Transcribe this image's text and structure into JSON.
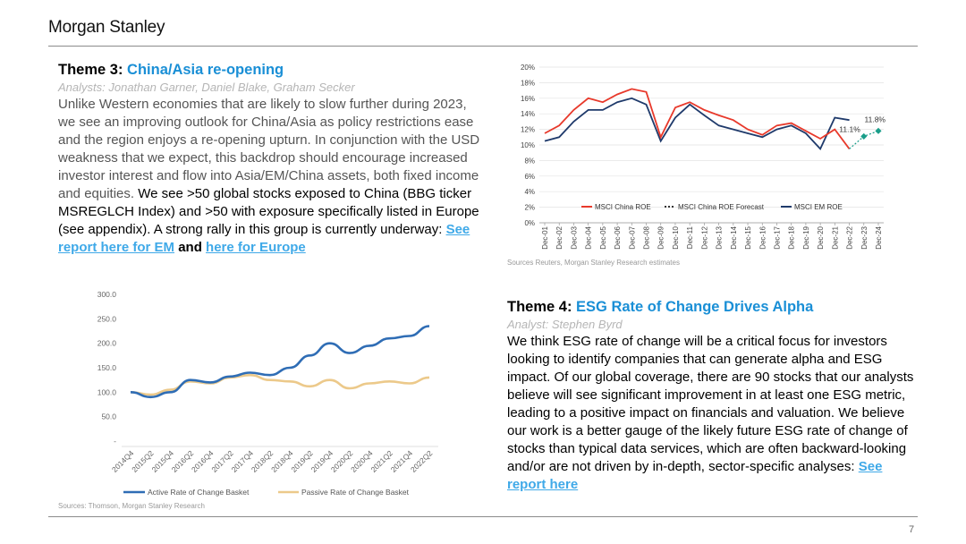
{
  "header": {
    "brand": "Morgan Stanley"
  },
  "page_number": "7",
  "theme3": {
    "title_prefix": "Theme 3:",
    "title_accent": "China/Asia re-opening",
    "analysts": "Analysts: Jonathan Garner, Daniel Blake, Graham Secker",
    "body_grey": "Unlike Western economies that are likely to slow further during 2023, we see an improving outlook for China/Asia as policy restrictions ease and the region enjoys a re-opening upturn. In conjunction with the USD weakness that we expect, this backdrop should encourage increased investor interest and flow into Asia/EM/China assets, both fixed income and equities.",
    "body_dark": "We see >50 global stocks exposed to China (BBG ticker MSREGLCH Index) and >50 with exposure specifically listed in Europe (see appendix). A strong rally in this group is currently underway:",
    "link_em": "See report here for EM",
    "and": "and",
    "link_europe": "here for Europe",
    "source": "Sources: Thomson, Morgan Stanley Research"
  },
  "theme4": {
    "title_prefix": "Theme 4:",
    "title_accent": "ESG Rate of Change Drives Alpha",
    "analysts": "Analyst: Stephen Byrd",
    "body": "We think ESG rate of change will be a critical focus for investors looking to identify companies that can generate alpha and ESG impact. Of our global coverage, there are 90 stocks that our analysts believe will see significant improvement in at least one ESG metric, leading to a positive impact on financials and valuation. We believe our work is a better gauge of the likely future ESG rate of change of stocks than typical data services, which are often backward-looking and/or are not driven by in-depth, sector-specific analyses:",
    "link": "See report here",
    "source": "Sources Reuters, Morgan Stanley Research estimates"
  },
  "colors": {
    "accent": "#1a8fd6",
    "link": "#3fa9e8",
    "china_roe": "#e8392b",
    "em_roe": "#1f3a6b",
    "forecast": "#1a9e8a",
    "active": "#2f6db5",
    "passive": "#ecc98a"
  },
  "chart_data": [
    {
      "type": "line",
      "categories": [
        "Dec-01",
        "Dec-02",
        "Dec-03",
        "Dec-04",
        "Dec-05",
        "Dec-06",
        "Dec-07",
        "Dec-08",
        "Dec-09",
        "Dec-10",
        "Dec-11",
        "Dec-12",
        "Dec-13",
        "Dec-14",
        "Dec-15",
        "Dec-16",
        "Dec-17",
        "Dec-18",
        "Dec-19",
        "Dec-20",
        "Dec-21",
        "Dec-22",
        "Dec-23",
        "Dec-24"
      ],
      "y_ticks": [
        "0%",
        "2%",
        "4%",
        "6%",
        "8%",
        "10%",
        "12%",
        "14%",
        "16%",
        "18%",
        "20%"
      ],
      "ylim": [
        0,
        20
      ],
      "legend": "bottom",
      "series": [
        {
          "name": "MSCI China ROE",
          "values": [
            11.5,
            12.5,
            14.5,
            16.0,
            15.5,
            16.5,
            17.2,
            16.8,
            11.0,
            14.8,
            15.5,
            14.5,
            13.8,
            13.2,
            12.0,
            11.3,
            12.5,
            12.8,
            11.8,
            10.8,
            12.0,
            9.5,
            null,
            null
          ]
        },
        {
          "name": "MSCI China ROE Forecast",
          "values": [
            null,
            null,
            null,
            null,
            null,
            null,
            null,
            null,
            null,
            null,
            null,
            0,
            0,
            0,
            0,
            0,
            0,
            0,
            0,
            0,
            0,
            9.5,
            11.1,
            11.8
          ]
        },
        {
          "name": "MSCI EM ROE",
          "values": [
            10.5,
            11.0,
            13.0,
            14.5,
            14.5,
            15.5,
            16.0,
            15.2,
            10.5,
            13.5,
            15.2,
            13.8,
            12.5,
            12.0,
            11.5,
            11.0,
            12.0,
            12.5,
            11.5,
            9.5,
            13.5,
            13.2,
            null,
            null
          ]
        }
      ],
      "annotations": [
        "11.1%",
        "11.8%"
      ]
    },
    {
      "type": "line",
      "categories": [
        "2014Q4",
        "2015Q2",
        "2015Q4",
        "2016Q2",
        "2016Q4",
        "2017Q2",
        "2017Q4",
        "2018Q2",
        "2018Q4",
        "2019Q2",
        "2019Q4",
        "2020Q2",
        "2020Q4",
        "2021Q2",
        "2021Q4",
        "2022Q2"
      ],
      "y_ticks": [
        "-",
        "50.0",
        "100.0",
        "150.0",
        "200.0",
        "250.0",
        "300.0"
      ],
      "ylim": [
        0,
        300
      ],
      "legend": "bottom",
      "series": [
        {
          "name": "Active Rate of Change Basket",
          "values": [
            100,
            90,
            100,
            125,
            120,
            132,
            140,
            135,
            150,
            175,
            200,
            180,
            195,
            210,
            215,
            235
          ]
        },
        {
          "name": "Passive Rate of Change Basket",
          "values": [
            100,
            95,
            105,
            122,
            118,
            130,
            135,
            125,
            122,
            112,
            125,
            108,
            118,
            122,
            118,
            130
          ]
        }
      ]
    }
  ]
}
